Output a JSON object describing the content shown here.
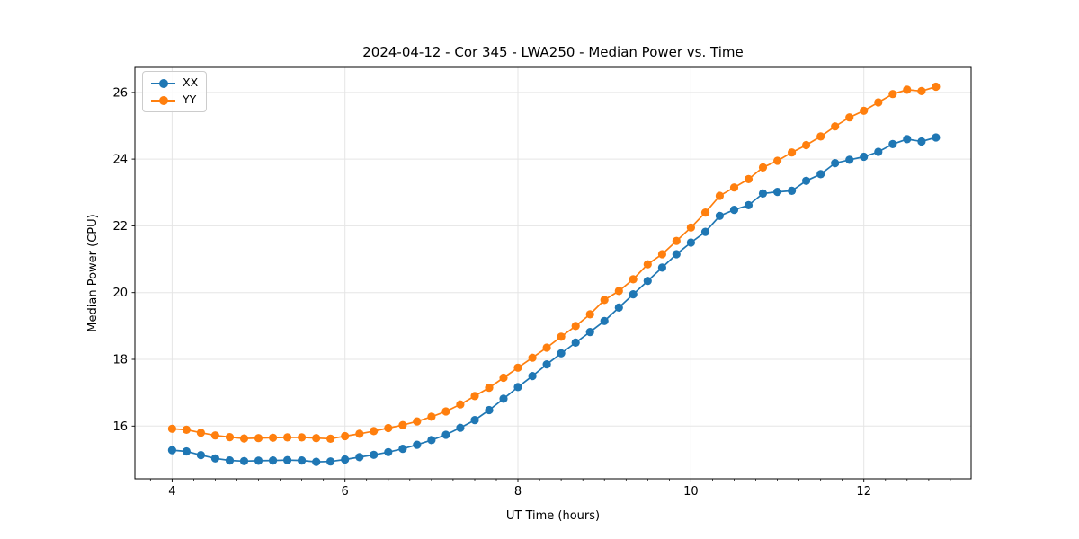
{
  "figure": {
    "background": "#ffffff",
    "grid_color": "#e5e5e5",
    "spine_color": "#000000"
  },
  "chart_data": {
    "type": "line",
    "title": "2024-04-12 - Cor 345 - LWA250 - Median Power vs. Time",
    "xlabel": "UT Time (hours)",
    "ylabel": "Median Power (CPU)",
    "xlim": [
      3.57,
      13.24
    ],
    "ylim": [
      14.42,
      26.75
    ],
    "x_major_ticks": [
      4,
      6,
      8,
      10,
      12
    ],
    "x_minor_tick_step": 0.25,
    "y_major_ticks": [
      16,
      18,
      20,
      22,
      24,
      26
    ],
    "grid": true,
    "legend_position": "upper left",
    "x": [
      4.0,
      4.167,
      4.333,
      4.5,
      4.667,
      4.833,
      5.0,
      5.167,
      5.333,
      5.5,
      5.667,
      5.833,
      6.0,
      6.167,
      6.333,
      6.5,
      6.667,
      6.833,
      7.0,
      7.167,
      7.333,
      7.5,
      7.667,
      7.833,
      8.0,
      8.167,
      8.333,
      8.5,
      8.667,
      8.833,
      9.0,
      9.167,
      9.333,
      9.5,
      9.667,
      9.833,
      10.0,
      10.167,
      10.333,
      10.5,
      10.667,
      10.833,
      11.0,
      11.167,
      11.333,
      11.5,
      11.667,
      11.833,
      12.0,
      12.167,
      12.333,
      12.5,
      12.667,
      12.833
    ],
    "series": [
      {
        "name": "XX",
        "color": "#1f77b4",
        "values": [
          15.28,
          15.24,
          15.13,
          15.03,
          14.97,
          14.95,
          14.96,
          14.97,
          14.98,
          14.97,
          14.93,
          14.94,
          15.0,
          15.07,
          15.14,
          15.22,
          15.32,
          15.44,
          15.58,
          15.74,
          15.95,
          16.18,
          16.48,
          16.82,
          17.17,
          17.5,
          17.85,
          18.18,
          18.5,
          18.82,
          19.15,
          19.55,
          19.95,
          20.35,
          20.75,
          21.15,
          21.5,
          21.82,
          22.3,
          22.48,
          22.62,
          22.97,
          23.02,
          23.05,
          23.35,
          23.55,
          23.88,
          23.98,
          24.07,
          24.22,
          24.45,
          24.6,
          24.53,
          24.65
        ]
      },
      {
        "name": "YY",
        "color": "#ff7f0e",
        "values": [
          15.92,
          15.89,
          15.8,
          15.72,
          15.67,
          15.63,
          15.64,
          15.65,
          15.66,
          15.66,
          15.64,
          15.62,
          15.7,
          15.77,
          15.85,
          15.94,
          16.03,
          16.14,
          16.28,
          16.44,
          16.65,
          16.9,
          17.15,
          17.45,
          17.75,
          18.05,
          18.35,
          18.68,
          19.0,
          19.35,
          19.78,
          20.05,
          20.4,
          20.85,
          21.15,
          21.55,
          21.95,
          22.4,
          22.9,
          23.15,
          23.4,
          23.75,
          23.95,
          24.2,
          24.42,
          24.68,
          24.98,
          25.25,
          25.45,
          25.7,
          25.95,
          26.08,
          26.04,
          26.17
        ]
      }
    ]
  }
}
